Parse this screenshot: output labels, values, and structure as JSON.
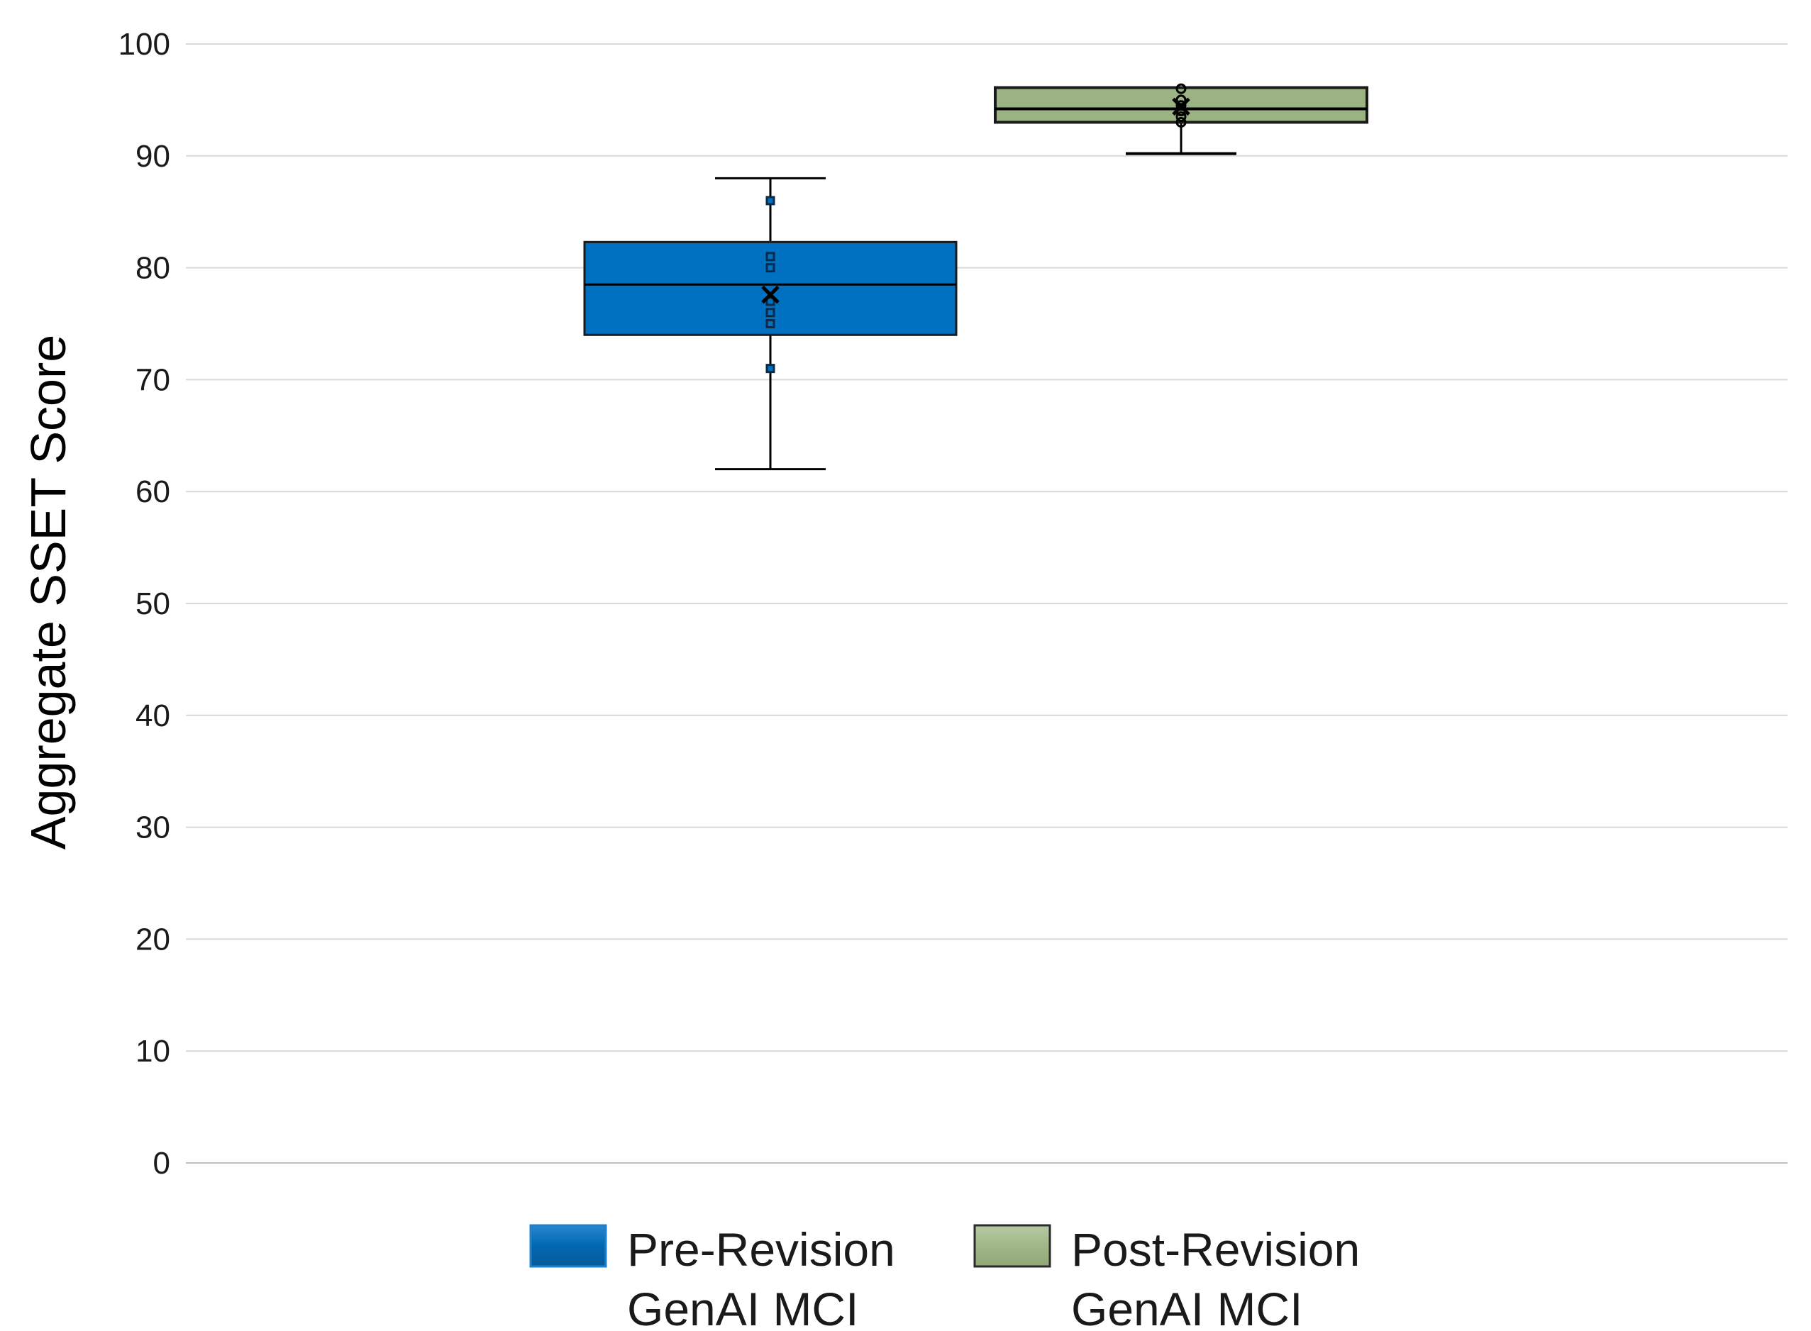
{
  "chart_data": {
    "type": "box",
    "title": "",
    "xlabel": "",
    "ylabel": "Aggregate SSET Score",
    "ylim": [
      0,
      100
    ],
    "yticks": [
      0,
      10,
      20,
      30,
      40,
      50,
      60,
      70,
      80,
      90,
      100
    ],
    "grid": true,
    "legend_position": "bottom",
    "series": [
      {
        "name": "Pre-Revision GenAI MCI",
        "legend_lines": [
          "Pre-Revision",
          "GenAI MCI"
        ],
        "color": "#0070c0",
        "stats": {
          "min": 62,
          "q1": 74,
          "median": 78.5,
          "q3": 82.3,
          "max": 88,
          "mean": 77.6
        },
        "points": [
          86,
          81,
          80,
          77,
          76,
          75,
          71
        ]
      },
      {
        "name": "Post-Revision GenAI MCI",
        "legend_lines": [
          "Post-Revision",
          "GenAI MCI"
        ],
        "color": "#9bb383",
        "stats": {
          "min": 90.2,
          "q1": 93,
          "median": 94.2,
          "q3": 96.1,
          "max": 96.1,
          "mean": 94.4
        },
        "points": [
          96,
          95,
          94.5,
          94,
          93.5,
          93
        ]
      }
    ]
  }
}
